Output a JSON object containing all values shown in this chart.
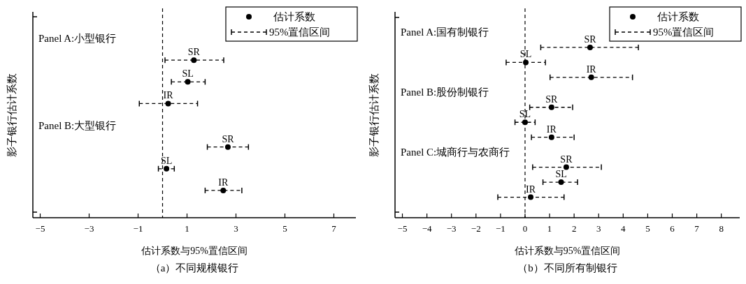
{
  "chart_data": [
    {
      "type": "scatter",
      "orientation": "horizontal",
      "title": "（a）不同规模银行",
      "xlabel": "估计系数与95%置信区间",
      "ylabel": "影子银行估计系数",
      "categories": [
        "Panel A:小型银行",
        "SR",
        "SL",
        "IR",
        "Panel B:大型银行",
        "SR",
        "SL",
        "IR"
      ],
      "series": [
        {
          "name": "估计系数",
          "color": "#000000",
          "values": [
            null,
            1.28,
            1.03,
            0.23,
            null,
            2.67,
            0.16,
            2.48
          ],
          "errors": [
            null,
            [
              0.1,
              2.5
            ],
            [
              0.36,
              1.74
            ],
            [
              -0.95,
              1.43
            ],
            null,
            [
              1.83,
              3.51
            ],
            [
              -0.17,
              0.48
            ],
            [
              1.74,
              3.24
            ]
          ]
        }
      ],
      "annotations": [
        "95%置信区间"
      ],
      "xlim": [
        -5.3,
        7.9
      ],
      "xticks": [
        {
          "value": -5,
          "label": "−5"
        },
        {
          "value": -3,
          "label": "−3"
        },
        {
          "value": -1,
          "label": "−1"
        },
        1,
        3,
        5,
        7
      ],
      "ref_lines": [
        {
          "axis": "x",
          "value": 0,
          "line_style": "dashed",
          "color": "#000000"
        }
      ],
      "marker": "circle",
      "line_style": "dashed",
      "legend": "top right",
      "grid": false
    },
    {
      "type": "scatter",
      "orientation": "horizontal",
      "title": "（b）不同所有制银行",
      "xlabel": "估计系数与95%置信区间",
      "ylabel": "影子银行估计系数",
      "categories": [
        "Panel A:国有制银行",
        "SR",
        "SL",
        "IR",
        "Panel B:股份制银行",
        "SR",
        "SL",
        "IR",
        "Panel C:城商行与农商行",
        "SR",
        "SL",
        "IR"
      ],
      "series": [
        {
          "name": "估计系数",
          "color": "#000000",
          "values": [
            null,
            2.65,
            0.03,
            2.7,
            null,
            1.08,
            0,
            1.08,
            null,
            1.68,
            1.47,
            0.23
          ],
          "errors": [
            null,
            [
              0.64,
              4.62
            ],
            [
              -0.77,
              0.83
            ],
            [
              1.02,
              4.38
            ],
            null,
            [
              0.19,
              1.94
            ],
            [
              -0.41,
              0.41
            ],
            [
              0.26,
              2.0
            ],
            null,
            [
              0.31,
              3.11
            ],
            [
              0.73,
              2.14
            ],
            [
              -1.11,
              1.59
            ]
          ]
        }
      ],
      "annotations": [
        "95%置信区间"
      ],
      "xlim": [
        -5.3,
        8.75
      ],
      "xticks": [
        {
          "value": -5,
          "label": "−5"
        },
        {
          "value": -4,
          "label": "−4"
        },
        {
          "value": -3,
          "label": "−3"
        },
        {
          "value": -2,
          "label": "−2"
        },
        {
          "value": -1,
          "label": "−1"
        },
        0,
        1,
        2,
        3,
        4,
        5,
        6,
        7,
        8
      ],
      "ref_lines": [
        {
          "axis": "x",
          "value": 0,
          "line_style": "dashed",
          "color": "#000000"
        }
      ],
      "marker": "circle",
      "line_style": "dashed",
      "legend": "top right",
      "grid": false
    }
  ]
}
